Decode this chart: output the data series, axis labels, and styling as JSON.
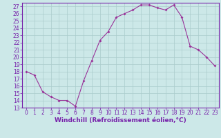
{
  "x": [
    0,
    1,
    2,
    3,
    4,
    5,
    6,
    7,
    8,
    9,
    10,
    11,
    12,
    13,
    14,
    15,
    16,
    17,
    18,
    19,
    20,
    21,
    22,
    23
  ],
  "y": [
    18,
    17.5,
    15.2,
    14.5,
    14,
    14,
    13.2,
    16.7,
    19.5,
    22.3,
    23.5,
    25.5,
    26,
    26.5,
    27.2,
    27.2,
    26.8,
    26.5,
    27.2,
    25.5,
    21.5,
    21,
    20,
    18.8
  ],
  "line_color": "#993399",
  "marker": "D",
  "marker_size": 2,
  "background_color": "#cce8e8",
  "grid_color": "#aacccc",
  "xlabel": "Windchill (Refroidissement éolien,°C)",
  "ylim": [
    13,
    27.5
  ],
  "yticks": [
    13,
    14,
    15,
    16,
    17,
    18,
    19,
    20,
    21,
    22,
    23,
    24,
    25,
    26,
    27
  ],
  "xticks": [
    0,
    1,
    2,
    3,
    4,
    5,
    6,
    7,
    8,
    9,
    10,
    11,
    12,
    13,
    14,
    15,
    16,
    17,
    18,
    19,
    20,
    21,
    22,
    23
  ],
  "xlim": [
    -0.5,
    23.5
  ],
  "spine_color": "#7722aa",
  "tick_fontsize": 5.5,
  "xlabel_fontsize": 6.5
}
